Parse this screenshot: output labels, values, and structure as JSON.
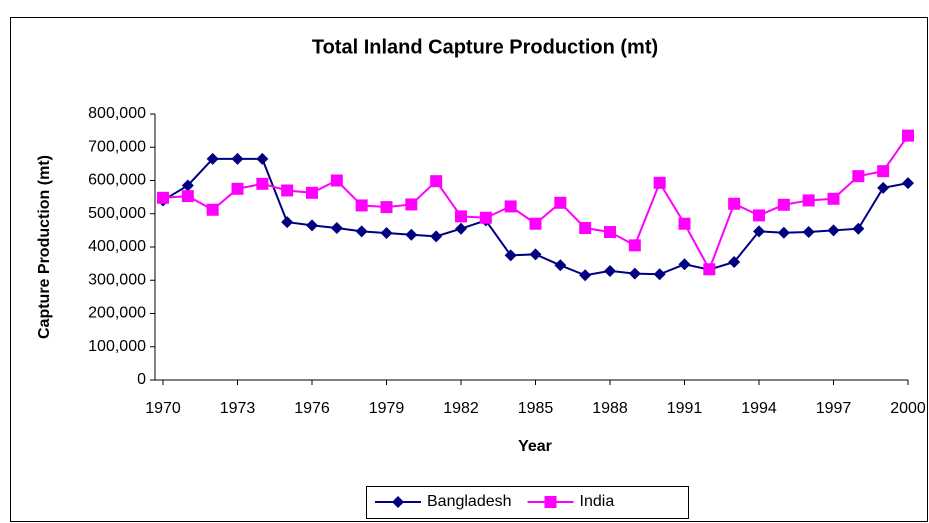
{
  "chart_data": {
    "type": "line",
    "title": "Total Inland Capture Production (mt)",
    "x_label": "Year",
    "y_label": "Capture Production (mt)",
    "x": [
      1970,
      1971,
      1972,
      1973,
      1974,
      1975,
      1976,
      1977,
      1978,
      1979,
      1980,
      1981,
      1982,
      1983,
      1984,
      1985,
      1986,
      1987,
      1988,
      1989,
      1990,
      1991,
      1992,
      1993,
      1994,
      1995,
      1996,
      1997,
      1998,
      1999,
      2000
    ],
    "series": [
      {
        "name": "Bangladesh",
        "color": "#000080",
        "marker": "diamond",
        "values": [
          540000,
          585000,
          665000,
          665000,
          665000,
          475000,
          465000,
          457000,
          447000,
          442000,
          437000,
          432000,
          455000,
          480000,
          375000,
          378000,
          345000,
          315000,
          328000,
          320000,
          318000,
          348000,
          332000,
          355000,
          447000,
          443000,
          445000,
          450000,
          455000,
          578000,
          592000
        ]
      },
      {
        "name": "India",
        "color": "#ff00ff",
        "marker": "square",
        "values": [
          548000,
          553000,
          512000,
          575000,
          590000,
          570000,
          563000,
          600000,
          525000,
          520000,
          528000,
          598000,
          492000,
          488000,
          522000,
          470000,
          533000,
          457000,
          445000,
          405000,
          593000,
          470000,
          333000,
          530000,
          495000,
          527000,
          540000,
          545000,
          613000,
          628000,
          735000
        ]
      }
    ],
    "xlim": [
      1970,
      2000
    ],
    "xticks": [
      1970,
      1973,
      1976,
      1979,
      1982,
      1985,
      1988,
      1991,
      1994,
      1997,
      2000
    ],
    "ylim": [
      0,
      800000
    ],
    "yticks": [
      0,
      {
        "value": 100000,
        "label": "100,000"
      },
      {
        "value": 200000,
        "label": "200,000"
      },
      {
        "value": 300000,
        "label": "300,000"
      },
      {
        "value": 400000,
        "label": "400,000"
      },
      {
        "value": 500000,
        "label": "500,000"
      },
      {
        "value": 600000,
        "label": "600,000"
      },
      {
        "value": 700000,
        "label": "700,000"
      },
      {
        "value": 800000,
        "label": "800,000"
      }
    ],
    "grid": false,
    "legend": "bottom"
  }
}
